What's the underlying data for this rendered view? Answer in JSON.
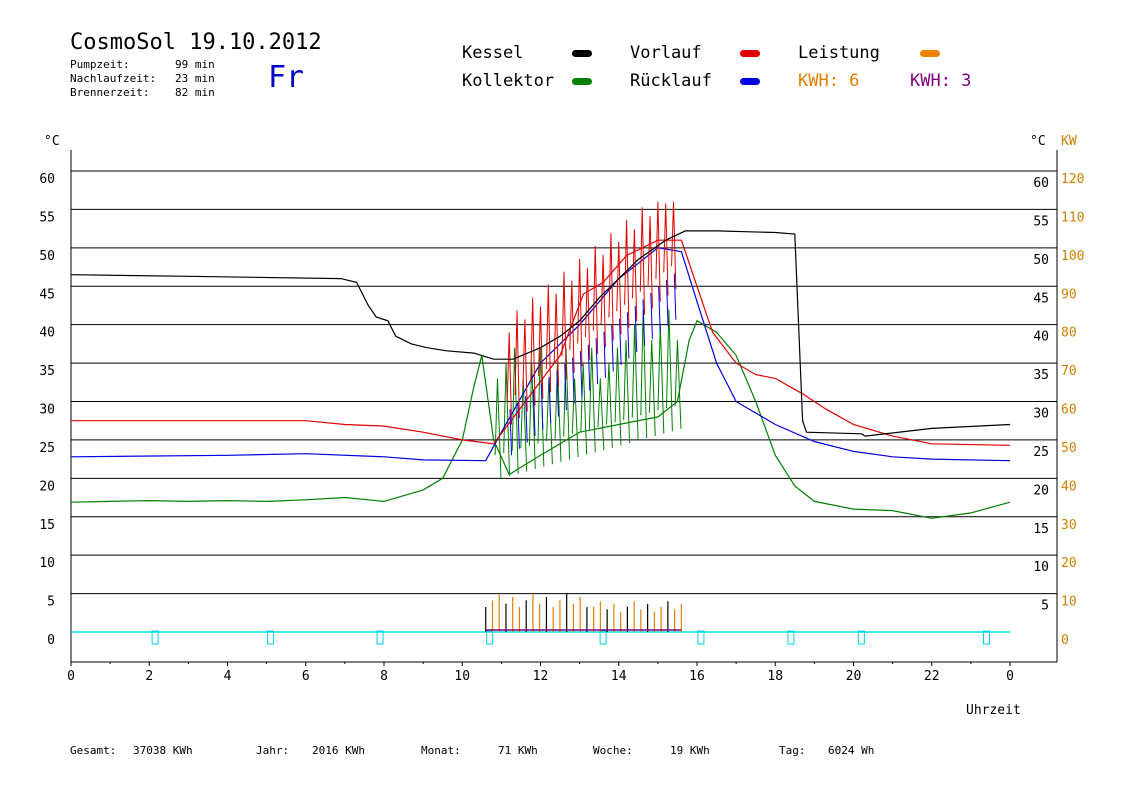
{
  "header": {
    "title": "CosmoSol 19.10.2012",
    "weekday": "Fr",
    "stats": [
      {
        "label": "Pumpzeit:",
        "value": "99 min"
      },
      {
        "label": "Nachlaufzeit:",
        "value": "23 min"
      },
      {
        "label": "Brennerzeit:",
        "value": "82 min"
      }
    ]
  },
  "legend": {
    "kessel": {
      "label": "Kessel",
      "color": "#000000"
    },
    "vorlauf": {
      "label": "Vorlauf",
      "color": "#e00000"
    },
    "leistung": {
      "label": "Leistung",
      "color": "#f08000"
    },
    "kollektor": {
      "label": "Kollektor",
      "color": "#008000"
    },
    "ruecklauf": {
      "label": "Rücklauf",
      "color": "#0000e0"
    },
    "kwh1": {
      "label": "KWH: 6",
      "color": "#e08000"
    },
    "kwh2": {
      "label": "KWH: 3",
      "color": "#800080"
    }
  },
  "footer": {
    "gesamt": {
      "label": "Gesamt:",
      "value": "37038 KWh"
    },
    "jahr": {
      "label": "Jahr:",
      "value": "2016 KWh"
    },
    "monat": {
      "label": "Monat:",
      "value": "71 KWh"
    },
    "woche": {
      "label": "Woche:",
      "value": "19 KWh"
    },
    "tag": {
      "label": "Tag:",
      "value": "6024 Wh"
    }
  },
  "chart_data": {
    "type": "line",
    "xlabel": "Uhrzeit",
    "ylabel": "°C",
    "ylabel_right": "°C",
    "ylabel_right2": "KW",
    "xlim": [
      0,
      24
    ],
    "ylim": [
      0,
      60
    ],
    "ylim_right2": [
      0,
      120
    ],
    "grid": true,
    "x_ticks": [
      "0",
      "2",
      "4",
      "6",
      "8",
      "10",
      "12",
      "14",
      "16",
      "18",
      "20",
      "22",
      "0"
    ],
    "y_ticks": [
      "0",
      "5",
      "10",
      "15",
      "20",
      "25",
      "30",
      "35",
      "40",
      "45",
      "50",
      "55",
      "60"
    ],
    "y_ticks_right": [
      "5",
      "10",
      "15",
      "20",
      "25",
      "30",
      "35",
      "40",
      "45",
      "50",
      "55",
      "60"
    ],
    "y_ticks_right2": [
      "0",
      "10",
      "20",
      "30",
      "40",
      "50",
      "60",
      "70",
      "80",
      "90",
      "100",
      "110",
      "120"
    ],
    "marker_hours": [
      2.15,
      5.1,
      7.9,
      10.7,
      13.6,
      16.1,
      18.4,
      20.2,
      23.4
    ],
    "series": [
      {
        "name": "Kessel",
        "color": "#000000",
        "points": [
          [
            0,
            46.5
          ],
          [
            3,
            46.3
          ],
          [
            6.9,
            46.0
          ],
          [
            7.3,
            45.5
          ],
          [
            7.6,
            42.5
          ],
          [
            7.8,
            41.0
          ],
          [
            8.1,
            40.5
          ],
          [
            8.3,
            38.5
          ],
          [
            8.7,
            37.5
          ],
          [
            9.1,
            37.0
          ],
          [
            9.6,
            36.6
          ],
          [
            10.3,
            36.3
          ],
          [
            10.8,
            35.5
          ],
          [
            11.3,
            35.5
          ],
          [
            12.0,
            37.0
          ],
          [
            12.5,
            38.5
          ],
          [
            13.0,
            40.5
          ],
          [
            13.5,
            43.5
          ],
          [
            14.0,
            46.0
          ],
          [
            14.5,
            48.5
          ],
          [
            15.2,
            51.0
          ],
          [
            15.7,
            52.2
          ],
          [
            16.5,
            52.2
          ],
          [
            18.0,
            52.0
          ],
          [
            18.5,
            51.8
          ],
          [
            18.7,
            27.5
          ],
          [
            18.8,
            26.0
          ],
          [
            20.2,
            25.8
          ],
          [
            20.3,
            25.5
          ],
          [
            22.0,
            26.5
          ],
          [
            24.0,
            27.0
          ]
        ]
      },
      {
        "name": "Vorlauf",
        "color": "#e00000",
        "points": [
          [
            0,
            27.5
          ],
          [
            6,
            27.5
          ],
          [
            7,
            27.0
          ],
          [
            8,
            26.8
          ],
          [
            9,
            26.0
          ],
          [
            10,
            25.0
          ],
          [
            10.8,
            24.5
          ],
          [
            12.5,
            36
          ],
          [
            13.1,
            44
          ],
          [
            13.6,
            45.5
          ],
          [
            14.2,
            49
          ],
          [
            15.0,
            51.0
          ],
          [
            15.6,
            51.0
          ],
          [
            16.0,
            45
          ],
          [
            16.4,
            39
          ],
          [
            17.0,
            35
          ],
          [
            17.5,
            33.5
          ],
          [
            18.0,
            33.0
          ],
          [
            18.7,
            31
          ],
          [
            19.3,
            29
          ],
          [
            20.0,
            27
          ],
          [
            21.0,
            25.5
          ],
          [
            22.0,
            24.5
          ],
          [
            24.0,
            24.3
          ]
        ]
      },
      {
        "name": "Rücklauf",
        "color": "#0000e0",
        "points": [
          [
            0,
            22.8
          ],
          [
            4,
            23.0
          ],
          [
            6,
            23.2
          ],
          [
            8,
            22.8
          ],
          [
            9,
            22.4
          ],
          [
            10.6,
            22.3
          ],
          [
            11.0,
            26
          ],
          [
            12.0,
            35
          ],
          [
            13.0,
            40
          ],
          [
            14.0,
            46
          ],
          [
            15.0,
            50
          ],
          [
            15.6,
            49.5
          ],
          [
            16.0,
            43
          ],
          [
            16.5,
            35
          ],
          [
            17.0,
            30
          ],
          [
            18.0,
            27
          ],
          [
            19.0,
            24.8
          ],
          [
            20.0,
            23.5
          ],
          [
            21.0,
            22.8
          ],
          [
            22.0,
            22.5
          ],
          [
            24.0,
            22.3
          ]
        ]
      },
      {
        "name": "Kollektor",
        "color": "#008000",
        "points": [
          [
            0,
            16.9
          ],
          [
            1,
            17.0
          ],
          [
            2,
            17.1
          ],
          [
            3,
            17.0
          ],
          [
            4,
            17.1
          ],
          [
            5,
            17.0
          ],
          [
            6,
            17.2
          ],
          [
            7,
            17.5
          ],
          [
            8,
            17.0
          ],
          [
            9,
            18.5
          ],
          [
            9.5,
            20
          ],
          [
            10.0,
            25
          ],
          [
            10.3,
            32
          ],
          [
            10.5,
            36
          ],
          [
            10.8,
            25
          ],
          [
            11.2,
            20.5
          ],
          [
            12.0,
            23
          ],
          [
            13.0,
            26
          ],
          [
            14.0,
            27
          ],
          [
            15.0,
            28
          ],
          [
            15.5,
            30
          ],
          [
            15.8,
            38
          ],
          [
            16.0,
            40.5
          ],
          [
            16.5,
            39
          ],
          [
            17.0,
            36
          ],
          [
            17.5,
            30
          ],
          [
            18.0,
            23
          ],
          [
            18.5,
            19
          ],
          [
            19.0,
            17
          ],
          [
            20.0,
            16.0
          ],
          [
            21.0,
            15.8
          ],
          [
            22.0,
            14.8
          ],
          [
            23.0,
            15.5
          ],
          [
            24.0,
            16.9
          ]
        ]
      }
    ],
    "spike_bands": {
      "vorlauf_peaks": {
        "start": 11.2,
        "end": 15.4,
        "count": 22,
        "peak_max": 56
      },
      "kollektor_peaks": {
        "start": 10.9,
        "end": 15.5,
        "count": 22,
        "peak_max": 42
      }
    },
    "leistung_bars": {
      "start": 10.6,
      "end": 15.6,
      "count": 30,
      "max_kw": 10
    }
  }
}
